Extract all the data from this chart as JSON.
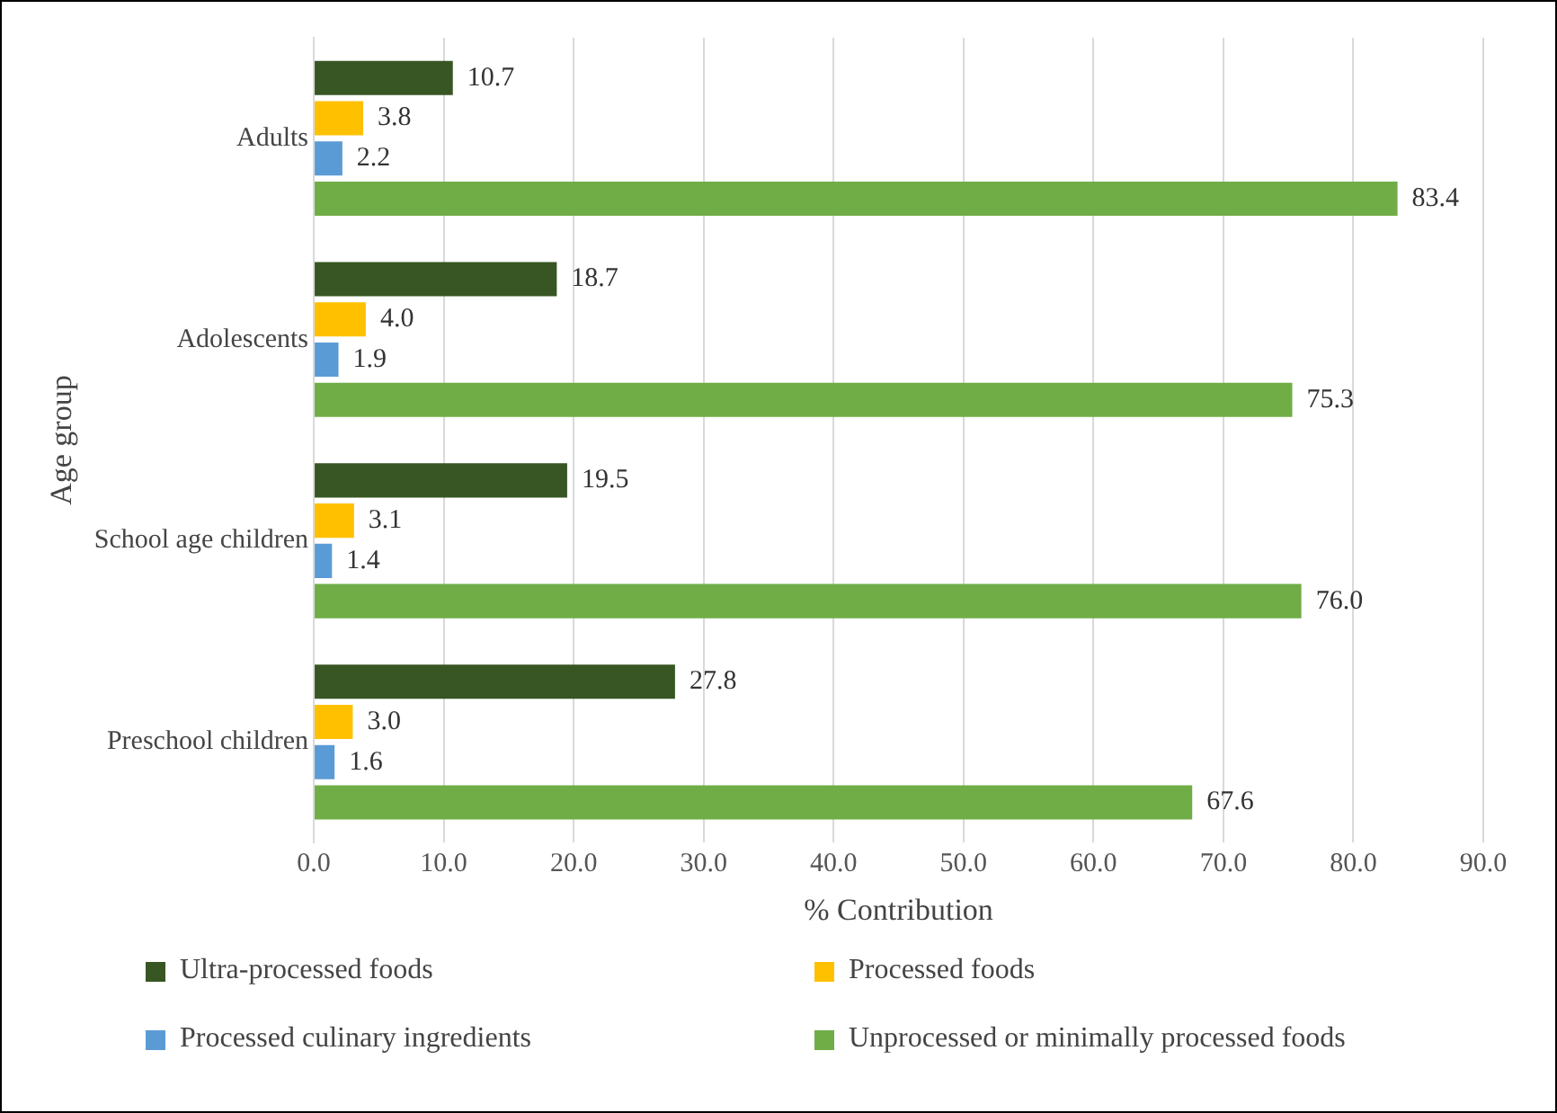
{
  "chart_data": {
    "type": "bar",
    "orientation": "horizontal",
    "xlabel": "% Contribution",
    "ylabel": "Age group",
    "categories": [
      "Adults",
      "Adolescents",
      "School age children",
      "Preschool children"
    ],
    "series": [
      {
        "name": "Ultra-processed foods",
        "color": "#375623",
        "values": [
          10.7,
          18.7,
          19.5,
          27.8
        ],
        "value_labels": [
          "10.7",
          "18.7",
          "19.5",
          "27.8"
        ]
      },
      {
        "name": "Processed foods",
        "color": "#ffc000",
        "values": [
          3.8,
          4.0,
          3.1,
          3.0
        ],
        "value_labels": [
          "3.8",
          "4.0",
          "3.1",
          "3.0"
        ]
      },
      {
        "name": "Processed culinary ingredients",
        "color": "#5b9bd5",
        "values": [
          2.2,
          1.9,
          1.4,
          1.6
        ],
        "value_labels": [
          "2.2",
          "1.9",
          "1.4",
          "1.6"
        ]
      },
      {
        "name": "Unprocessed or minimally processed foods",
        "color": "#70ad47",
        "values": [
          83.4,
          75.3,
          76.0,
          67.6
        ],
        "value_labels": [
          "83.4",
          "75.3",
          "76.0",
          "67.6"
        ]
      }
    ],
    "xlim": [
      0,
      90
    ],
    "xticks": [
      {
        "value": 0,
        "label": "0.0"
      },
      {
        "value": 10,
        "label": "10.0"
      },
      {
        "value": 20,
        "label": "20.0"
      },
      {
        "value": 30,
        "label": "30.0"
      },
      {
        "value": 40,
        "label": "40.0"
      },
      {
        "value": 50,
        "label": "50.0"
      },
      {
        "value": 60,
        "label": "60.0"
      },
      {
        "value": 70,
        "label": "70.0"
      },
      {
        "value": 80,
        "label": "80.0"
      },
      {
        "value": 90,
        "label": "90.0"
      }
    ],
    "grid": "x",
    "legend": "bottom"
  }
}
